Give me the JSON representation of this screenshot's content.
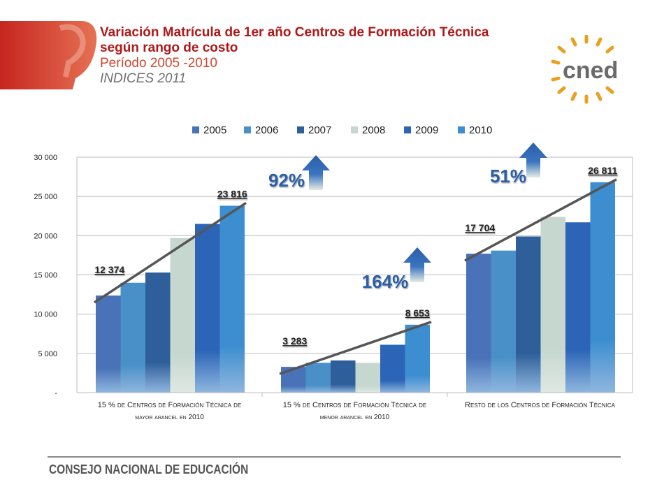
{
  "header": {
    "title_line1": "Variación Matrícula de 1er año Centros de Formación Técnica",
    "title_line2": "según rango de costo",
    "period": "Período 2005 -2010",
    "subtitle": "INDICES 2011"
  },
  "logo": {
    "text": "cned"
  },
  "footer": {
    "text": "CONSEJO NACIONAL DE EDUCACIÓN"
  },
  "colors": {
    "series": [
      "#4a72b8",
      "#4a90c8",
      "#2f5f9a",
      "#c5d7cf",
      "#2c65b8",
      "#3c8ed0"
    ],
    "trend": "#555555",
    "title_red": "#b01818"
  },
  "chart_data": {
    "type": "bar",
    "title": "",
    "xlabel": "",
    "ylabel": "",
    "ylim": [
      0,
      30000
    ],
    "yticks": [
      0,
      5000,
      10000,
      15000,
      20000,
      25000,
      30000
    ],
    "ytick_labels": [
      "-",
      "5 000",
      "10 000",
      "15 000",
      "20 000",
      "25 000",
      "30 000"
    ],
    "grid": true,
    "legend_position": "top",
    "categories": [
      "15 % de Centros de Formación Técnica de mayor arancel en 2010",
      "15 % de Centros de Formación Técnica de menor arancel en 2010",
      "Resto de los Centros de Formación Técnica"
    ],
    "category_labels": [
      [
        "15 % de Centros de Formación Técnica de",
        "mayor arancel en 2010"
      ],
      [
        "15 % de Centros de Formación Técnica de",
        "menor arancel en 2010"
      ],
      [
        "Resto de los Centros de Formación Técnica"
      ]
    ],
    "series": [
      {
        "name": "2005",
        "values": [
          12374,
          3283,
          17704
        ]
      },
      {
        "name": "2006",
        "values": [
          14000,
          3800,
          18100
        ]
      },
      {
        "name": "2007",
        "values": [
          15300,
          4100,
          19900
        ]
      },
      {
        "name": "2008",
        "values": [
          19700,
          3800,
          22400
        ]
      },
      {
        "name": "2009",
        "values": [
          21500,
          6100,
          21700
        ]
      },
      {
        "name": "2010",
        "values": [
          23816,
          8653,
          26811
        ]
      }
    ],
    "data_labels": [
      {
        "group": 0,
        "series": 0,
        "text": "12 374"
      },
      {
        "group": 0,
        "series": 5,
        "text": "23 816"
      },
      {
        "group": 1,
        "series": 0,
        "text": "3 283"
      },
      {
        "group": 1,
        "series": 5,
        "text": "8 653"
      },
      {
        "group": 2,
        "series": 0,
        "text": "17 704"
      },
      {
        "group": 2,
        "series": 5,
        "text": "26 811"
      }
    ],
    "annotations": [
      {
        "group": 0,
        "text": "92%"
      },
      {
        "group": 1,
        "text": "164%"
      },
      {
        "group": 2,
        "text": "51%"
      }
    ]
  }
}
